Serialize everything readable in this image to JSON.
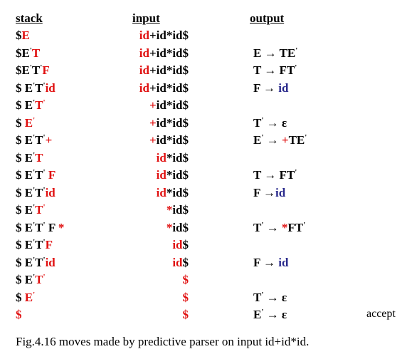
{
  "colors": {
    "black": "#000000",
    "red": "#e01010",
    "blue": "#2a2a8c"
  },
  "headers": {
    "stack": "stack",
    "input": "input",
    "output": "output"
  },
  "rows": [
    {
      "stack": [
        [
          "$",
          "k"
        ],
        [
          "E",
          "r"
        ]
      ],
      "input": [
        [
          "id",
          "r"
        ],
        [
          "+id*id$",
          "k"
        ]
      ],
      "output": []
    },
    {
      "stack": [
        [
          "$E",
          "k"
        ],
        [
          "'",
          "k",
          "p"
        ],
        [
          "T",
          "r"
        ]
      ],
      "input": [
        [
          "id",
          "r"
        ],
        [
          "+id*id$",
          "k"
        ]
      ],
      "output": [
        [
          "E → TE",
          "k"
        ],
        [
          "'",
          "k",
          "p"
        ]
      ]
    },
    {
      "stack": [
        [
          "$E",
          "k"
        ],
        [
          "'",
          "k",
          "p"
        ],
        [
          "T",
          "k"
        ],
        [
          "'",
          "k",
          "p"
        ],
        [
          "F",
          "r"
        ]
      ],
      "input": [
        [
          "id",
          "r"
        ],
        [
          "+id*id$",
          "k"
        ]
      ],
      "output": [
        [
          "T → FT",
          "k"
        ],
        [
          "'",
          "k",
          "p"
        ]
      ]
    },
    {
      "stack": [
        [
          "$ E",
          "k"
        ],
        [
          "'",
          "k",
          "p"
        ],
        [
          "T",
          "k"
        ],
        [
          "'",
          "k",
          "p"
        ],
        [
          "id",
          "r"
        ]
      ],
      "input": [
        [
          "id",
          "r"
        ],
        [
          "+id*id$",
          "k"
        ]
      ],
      "output": [
        [
          "F → ",
          "k"
        ],
        [
          "id",
          "b"
        ]
      ]
    },
    {
      "stack": [
        [
          "$ E",
          "k"
        ],
        [
          "'",
          "k",
          "p"
        ],
        [
          "T",
          "r"
        ],
        [
          "'",
          "r",
          "p"
        ]
      ],
      "input": [
        [
          "+",
          "r"
        ],
        [
          "id*id$",
          "k"
        ]
      ],
      "output": []
    },
    {
      "stack": [
        [
          "$ ",
          "k"
        ],
        [
          "E",
          "r"
        ],
        [
          "'",
          "r",
          "p"
        ]
      ],
      "input": [
        [
          "+",
          "r"
        ],
        [
          "id*id$",
          "k"
        ]
      ],
      "output": [
        [
          "T",
          "k"
        ],
        [
          "'",
          "k",
          "p"
        ],
        [
          " → ε",
          "k"
        ]
      ]
    },
    {
      "stack": [
        [
          "$ E",
          "k"
        ],
        [
          "'",
          "k",
          "p"
        ],
        [
          "T",
          "k"
        ],
        [
          "'",
          "k",
          "p"
        ],
        [
          "+",
          "r"
        ]
      ],
      "input": [
        [
          "+",
          "r"
        ],
        [
          "id*id$",
          "k"
        ]
      ],
      "output": [
        [
          "E",
          "k"
        ],
        [
          "'",
          "k",
          "p"
        ],
        [
          " → ",
          "k"
        ],
        [
          "+",
          "r"
        ],
        [
          "TE",
          "k"
        ],
        [
          "'",
          "k",
          "p"
        ]
      ]
    },
    {
      "stack": [
        [
          "$ E",
          "k"
        ],
        [
          "'",
          "k",
          "p"
        ],
        [
          "T",
          "r"
        ]
      ],
      "input": [
        [
          "id",
          "r"
        ],
        [
          "*id$",
          "k"
        ]
      ],
      "output": []
    },
    {
      "stack": [
        [
          "$ E",
          "k"
        ],
        [
          "'",
          "k",
          "p"
        ],
        [
          "T",
          "k"
        ],
        [
          "'",
          "k",
          "p"
        ],
        [
          " F",
          "r"
        ]
      ],
      "input": [
        [
          "id",
          "r"
        ],
        [
          "*id$",
          "k"
        ]
      ],
      "output": [
        [
          "T → FT",
          "k"
        ],
        [
          "'",
          "k",
          "p"
        ]
      ]
    },
    {
      "stack": [
        [
          "$ E",
          "k"
        ],
        [
          "'",
          "k",
          "p"
        ],
        [
          "T",
          "k"
        ],
        [
          "'",
          "k",
          "p"
        ],
        [
          "id",
          "r"
        ]
      ],
      "input": [
        [
          "id",
          "r"
        ],
        [
          "*id$",
          "k"
        ]
      ],
      "output": [
        [
          "F →",
          "k"
        ],
        [
          "id",
          "b"
        ]
      ]
    },
    {
      "stack": [
        [
          "$ E",
          "k"
        ],
        [
          "'",
          "k",
          "p"
        ],
        [
          "T",
          "r"
        ],
        [
          "'",
          "r",
          "p"
        ]
      ],
      "input": [
        [
          "*",
          "r"
        ],
        [
          "id$",
          "k"
        ]
      ],
      "output": []
    },
    {
      "stack": [
        [
          "$ E",
          "k"
        ],
        [
          "'",
          "k",
          "p"
        ],
        [
          "T",
          "k"
        ],
        [
          "'",
          "k",
          "p"
        ],
        [
          " F",
          "k"
        ],
        [
          " *",
          "r"
        ]
      ],
      "input": [
        [
          "*",
          "r"
        ],
        [
          "id$",
          "k"
        ]
      ],
      "output": [
        [
          "T",
          "k"
        ],
        [
          "'",
          "k",
          "p"
        ],
        [
          " → ",
          "k"
        ],
        [
          "*",
          "r"
        ],
        [
          "FT",
          "k"
        ],
        [
          "'",
          "k",
          "p"
        ]
      ]
    },
    {
      "stack": [
        [
          "$ E",
          "k"
        ],
        [
          "'",
          "k",
          "p"
        ],
        [
          "T",
          "k"
        ],
        [
          "'",
          "k",
          "p"
        ],
        [
          "F",
          "r"
        ]
      ],
      "input": [
        [
          "id",
          "r"
        ],
        [
          "$",
          "k"
        ]
      ],
      "output": []
    },
    {
      "stack": [
        [
          "$ E",
          "k"
        ],
        [
          "'",
          "k",
          "p"
        ],
        [
          "T",
          "k"
        ],
        [
          "'",
          "k",
          "p"
        ],
        [
          "id",
          "r"
        ]
      ],
      "input": [
        [
          "id",
          "r"
        ],
        [
          "$",
          "k"
        ]
      ],
      "output": [
        [
          "F → ",
          "k"
        ],
        [
          "id",
          "b"
        ]
      ]
    },
    {
      "stack": [
        [
          "$ E",
          "k"
        ],
        [
          "'",
          "k",
          "p"
        ],
        [
          "T",
          "r"
        ],
        [
          "'",
          "r",
          "p"
        ]
      ],
      "input": [
        [
          "$",
          "r"
        ]
      ],
      "output": []
    },
    {
      "stack": [
        [
          "$ ",
          "k"
        ],
        [
          "E",
          "r"
        ],
        [
          "'",
          "r",
          "p"
        ]
      ],
      "input": [
        [
          "$",
          "r"
        ]
      ],
      "output": [
        [
          "T",
          "k"
        ],
        [
          "'",
          "k",
          "p"
        ],
        [
          " → ε",
          "k"
        ]
      ]
    },
    {
      "stack": [
        [
          "$",
          "r"
        ]
      ],
      "input": [
        [
          "$",
          "r"
        ]
      ],
      "output": [
        [
          "E",
          "k"
        ],
        [
          "'",
          "k",
          "p"
        ],
        [
          " → ε",
          "k"
        ]
      ],
      "extra": "accept"
    }
  ],
  "caption": "Fig.4.16 moves made by predictive parser on input id+id*id."
}
